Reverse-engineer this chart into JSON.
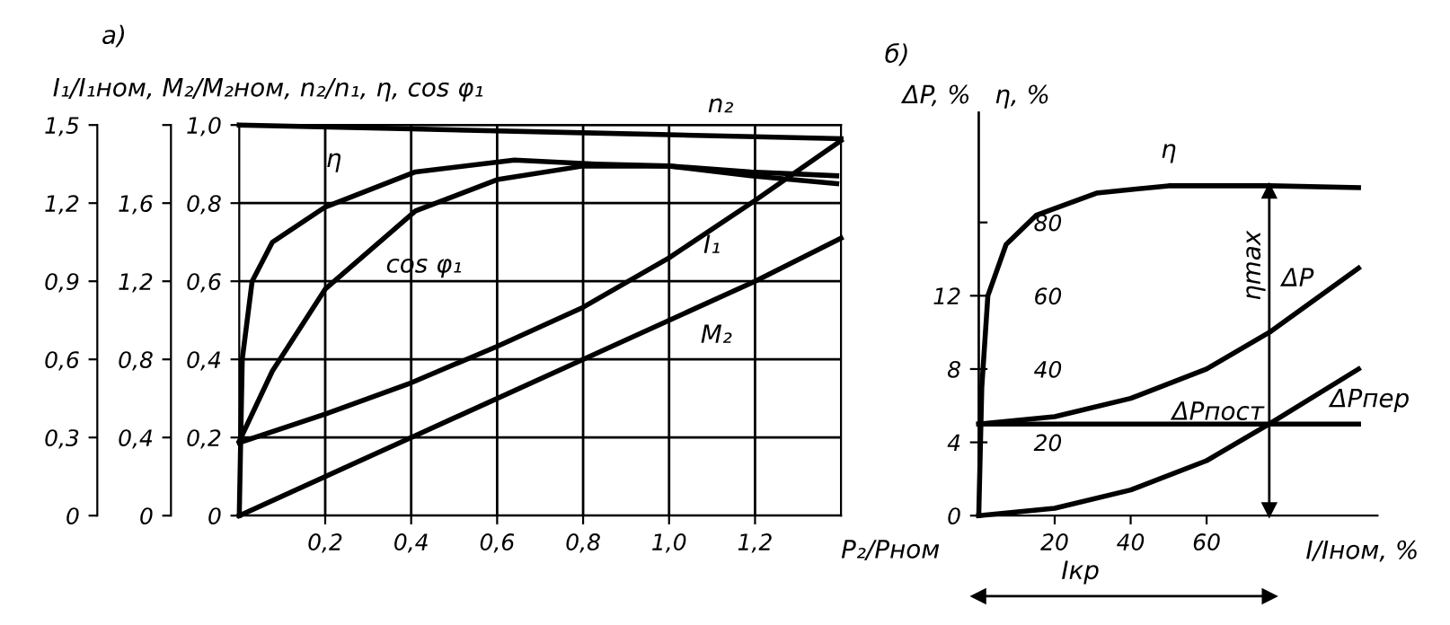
{
  "chart_data": [
    {
      "type": "line",
      "title": "а)",
      "ylabel": "I₁/I₁ном, M₂/M₂ном, n₂/n₁, η, cos φ₁",
      "xlabel": "P₂/Pном",
      "xlim": [
        0,
        1.4
      ],
      "xticks": [
        {
          "value": 0.2,
          "label": "0,2"
        },
        {
          "value": 0.4,
          "label": "0,4"
        },
        {
          "value": 0.6,
          "label": "0,6"
        },
        {
          "value": 0.8,
          "label": "0,8"
        },
        {
          "value": 1.0,
          "label": "1,0"
        },
        {
          "value": 1.2,
          "label": "1,2"
        }
      ],
      "ylim": [
        0,
        1.0
      ],
      "yticks": [
        0,
        {
          "value": 0.2,
          "label": "0,2"
        },
        {
          "value": 0.4,
          "label": "0,4"
        },
        {
          "value": 0.6,
          "label": "0,6"
        },
        {
          "value": 0.8,
          "label": "0,8"
        },
        {
          "value": 1.0,
          "label": "1,0"
        }
      ],
      "y2lim": [
        0,
        1.5
      ],
      "y2ticks": [
        0,
        {
          "value": 0.3,
          "label": "0,3"
        },
        {
          "value": 0.6,
          "label": "0,6"
        },
        {
          "value": 0.9,
          "label": "0,9"
        },
        {
          "value": 1.2,
          "label": "1,2"
        },
        {
          "value": 1.5,
          "label": "1,5"
        }
      ],
      "y3lim": [
        0,
        2.0
      ],
      "y3ticks": [
        0,
        {
          "value": 0.4,
          "label": "0,4"
        },
        {
          "value": 0.8,
          "label": "0,8"
        },
        {
          "value": 1.2,
          "label": "1,2"
        },
        {
          "value": 1.6,
          "label": "1,6"
        },
        {
          "value": 2.0,
          "label": null
        }
      ],
      "grid": true,
      "line_style": "solid",
      "marker": "none",
      "series": [
        {
          "name": "n₂",
          "color": "#000000",
          "x": [
            0,
            0.4,
            0.8,
            1.0,
            1.2,
            1.4
          ],
          "values": [
            1.0,
            0.99,
            0.98,
            0.975,
            0.97,
            0.965
          ]
        },
        {
          "name": "η",
          "color": "#000000",
          "x": [
            0,
            0.007,
            0.03,
            0.077,
            0.2,
            0.41,
            0.64,
            0.83,
            1.0,
            1.19,
            1.39
          ],
          "values": [
            0,
            0.4,
            0.6,
            0.7,
            0.79,
            0.88,
            0.91,
            0.9,
            0.895,
            0.87,
            0.85
          ]
        },
        {
          "name": "cos φ₁",
          "color": "#000000",
          "x": [
            0,
            0.077,
            0.2,
            0.41,
            0.6,
            0.8,
            1.0,
            1.19,
            1.39
          ],
          "values": [
            0.19,
            0.37,
            0.58,
            0.78,
            0.86,
            0.895,
            0.895,
            0.88,
            0.87
          ]
        },
        {
          "name": "I₁",
          "color": "#000000",
          "axis": "y2",
          "x": [
            0,
            0.2,
            0.4,
            0.6,
            0.8,
            1.0,
            1.2,
            1.4
          ],
          "values": [
            0.28,
            0.39,
            0.51,
            0.65,
            0.8,
            0.99,
            1.21,
            1.44
          ]
        },
        {
          "name": "M₂",
          "color": "#000000",
          "axis": "y3",
          "x": [
            0,
            0.4,
            0.8,
            1.2,
            1.4
          ],
          "values": [
            0,
            0.4,
            0.8,
            1.2,
            1.42
          ]
        }
      ]
    },
    {
      "type": "line",
      "title": "б)",
      "ylabel": "ΔP, %",
      "y2label": "η, %",
      "xlabel": "I/Iном, %",
      "xlim": [
        0,
        105
      ],
      "xticks": [
        20,
        40,
        60
      ],
      "ylim": [
        0,
        22
      ],
      "yticks": [
        0,
        4,
        8,
        12
      ],
      "y2lim": [
        0,
        110
      ],
      "y2ticks": [
        20,
        40,
        60,
        80
      ],
      "grid": false,
      "line_style": "solid",
      "marker": "none",
      "series": [
        {
          "name": "η",
          "color": "#000000",
          "axis": "y2",
          "x": [
            0,
            0.8,
            2.4,
            7.2,
            15.2,
            31,
            50,
            76.5,
            100
          ],
          "values": [
            0,
            35,
            60,
            74,
            82,
            88,
            90,
            90,
            89.5
          ]
        },
        {
          "name": "ΔP",
          "color": "#000000",
          "x": [
            0,
            20,
            40,
            60,
            76.5,
            100
          ],
          "values": [
            5,
            5.4,
            6.4,
            8.0,
            10.0,
            13.5
          ]
        },
        {
          "name": "ΔPпост",
          "color": "#000000",
          "x": [
            0,
            100
          ],
          "values": [
            5,
            5
          ]
        },
        {
          "name": "ΔPпер",
          "color": "#000000",
          "x": [
            0,
            20,
            40,
            60,
            76.5,
            100
          ],
          "values": [
            0,
            0.4,
            1.4,
            3.0,
            5.0,
            8.0
          ]
        }
      ],
      "ref_lines": [
        {
          "axis": "x",
          "value": 76.5,
          "label": "ηmax"
        }
      ],
      "annotations": [
        "Iкр"
      ]
    }
  ]
}
